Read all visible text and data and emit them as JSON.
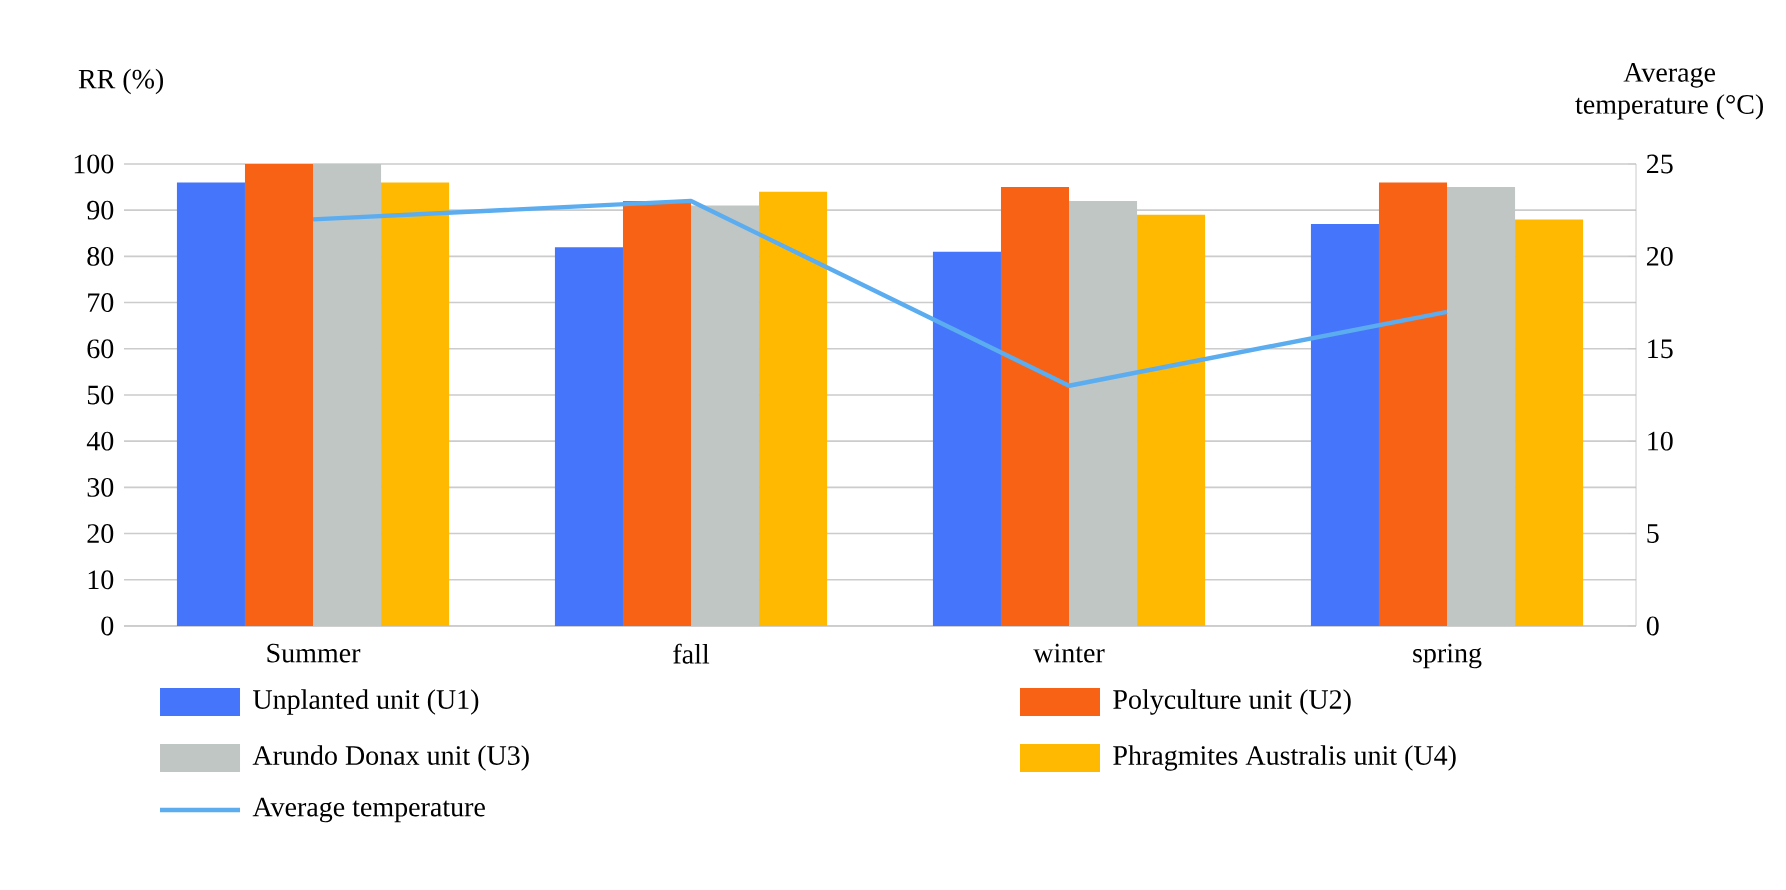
{
  "chart_data": {
    "type": "bar",
    "ylabel": "RR (%)",
    "y2label": "Average temperature (°C)",
    "categories": [
      "Summer",
      "fall",
      "winter",
      "spring"
    ],
    "series": [
      {
        "name": "Unplanted unit (U1)",
        "color": "#4475fb",
        "values": [
          96,
          82,
          81,
          87
        ]
      },
      {
        "name": "Polyculture unit (U2)",
        "color": "#f76215",
        "values": [
          100,
          92,
          95,
          96
        ]
      },
      {
        "name": "Arundo Donax unit (U3)",
        "color": "#c0c6c4",
        "values": [
          100,
          91,
          92,
          95
        ]
      },
      {
        "name": "Phragmites Australis unit (U4)",
        "color": "#ffb900",
        "values": [
          96,
          94,
          89,
          88
        ]
      },
      {
        "name": "Average temperature",
        "color": "#5badf0",
        "type": "line",
        "axis": "y2",
        "values": [
          22,
          23,
          13,
          17
        ]
      }
    ],
    "ylim": [
      0,
      100
    ],
    "yticks": [
      0,
      10,
      20,
      30,
      40,
      50,
      60,
      70,
      80,
      90,
      100
    ],
    "y2lim": [
      0,
      25
    ],
    "y2ticks": [
      0,
      5,
      10,
      15,
      20,
      25
    ],
    "grid": "y",
    "legend": "bottom",
    "line_style": "solid"
  }
}
